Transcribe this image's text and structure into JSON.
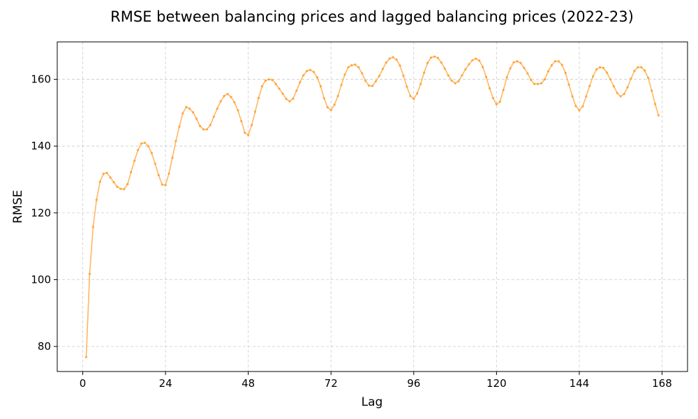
{
  "chart_data": {
    "type": "line",
    "title": "RMSE between balancing prices and lagged balancing prices (2022-23)",
    "xlabel": "Lag",
    "ylabel": "RMSE",
    "xlim": [
      -7.4,
      175.4
    ],
    "ylim": [
      72.5,
      171.2
    ],
    "xticks": [
      0,
      24,
      48,
      72,
      96,
      120,
      144,
      168
    ],
    "yticks": [
      80,
      100,
      120,
      140,
      160
    ],
    "grid": true,
    "line_color": "#ff9f2e",
    "series": [
      {
        "x": [
          1,
          2,
          3,
          4,
          5,
          6,
          7,
          8,
          9,
          10,
          11,
          12,
          13,
          14,
          15,
          16,
          17,
          18,
          19,
          20,
          21,
          22,
          23,
          24,
          25,
          26,
          27,
          28,
          29,
          30,
          31,
          32,
          33,
          34,
          35,
          36,
          37,
          38,
          39,
          40,
          41,
          42,
          43,
          44,
          45,
          46,
          47,
          48,
          49,
          50,
          51,
          52,
          53,
          54,
          55,
          56,
          57,
          58,
          59,
          60,
          61,
          62,
          63,
          64,
          65,
          66,
          67,
          68,
          69,
          70,
          71,
          72,
          73,
          74,
          75,
          76,
          77,
          78,
          79,
          80,
          81,
          82,
          83,
          84,
          85,
          86,
          87,
          88,
          89,
          90,
          91,
          92,
          93,
          94,
          95,
          96,
          97,
          98,
          99,
          100,
          101,
          102,
          103,
          104,
          105,
          106,
          107,
          108,
          109,
          110,
          111,
          112,
          113,
          114,
          115,
          116,
          117,
          118,
          119,
          120,
          121,
          122,
          123,
          124,
          125,
          126,
          127,
          128,
          129,
          130,
          131,
          132,
          133,
          134,
          135,
          136,
          137,
          138,
          139,
          140,
          141,
          142,
          143,
          144,
          145,
          146,
          147,
          148,
          149,
          150,
          151,
          152,
          153,
          154,
          155,
          156,
          157,
          158,
          159,
          160,
          161,
          162,
          163,
          164,
          165,
          166,
          167
        ],
        "values": [
          76.8,
          101.7,
          115.8,
          123.9,
          129.3,
          131.7,
          132.0,
          130.6,
          129.2,
          127.8,
          127.2,
          127.1,
          128.6,
          132.2,
          135.6,
          138.8,
          140.8,
          141.0,
          140.0,
          137.9,
          134.7,
          131.3,
          128.5,
          128.3,
          131.8,
          136.5,
          141.5,
          145.8,
          149.8,
          151.7,
          151.2,
          150.1,
          148.2,
          146.0,
          145.0,
          145.0,
          146.3,
          148.8,
          151.2,
          153.4,
          155.0,
          155.6,
          154.7,
          153.1,
          150.7,
          147.5,
          144.0,
          143.3,
          146.3,
          150.3,
          154.4,
          157.9,
          159.6,
          160.0,
          159.8,
          158.6,
          157.2,
          155.7,
          154.1,
          153.4,
          154.2,
          156.6,
          159.1,
          161.2,
          162.5,
          162.8,
          162.2,
          160.6,
          157.9,
          154.3,
          151.6,
          150.8,
          152.4,
          155.0,
          158.3,
          161.4,
          163.6,
          164.2,
          164.4,
          163.6,
          161.8,
          159.5,
          158.1,
          158.0,
          159.4,
          161.0,
          163.1,
          165.0,
          166.2,
          166.6,
          165.9,
          164.1,
          161.1,
          157.8,
          155.0,
          154.1,
          155.8,
          158.6,
          162.0,
          164.9,
          166.5,
          166.8,
          166.4,
          165.0,
          163.2,
          161.2,
          159.6,
          158.8,
          159.4,
          161.2,
          163.0,
          164.5,
          165.7,
          166.2,
          165.6,
          163.7,
          160.7,
          157.3,
          154.4,
          152.5,
          153.3,
          156.8,
          160.6,
          163.3,
          165.1,
          165.4,
          164.9,
          163.4,
          161.8,
          159.8,
          158.6,
          158.6,
          158.8,
          160.0,
          162.4,
          164.2,
          165.4,
          165.4,
          164.3,
          161.9,
          158.4,
          154.9,
          152.0,
          150.7,
          151.9,
          154.9,
          158.0,
          160.9,
          163.0,
          163.6,
          163.4,
          162.0,
          160.0,
          157.9,
          155.9,
          154.9,
          155.6,
          157.6,
          160.2,
          162.5,
          163.6,
          163.6,
          162.6,
          160.4,
          156.6,
          152.6,
          149.2
        ]
      }
    ]
  }
}
